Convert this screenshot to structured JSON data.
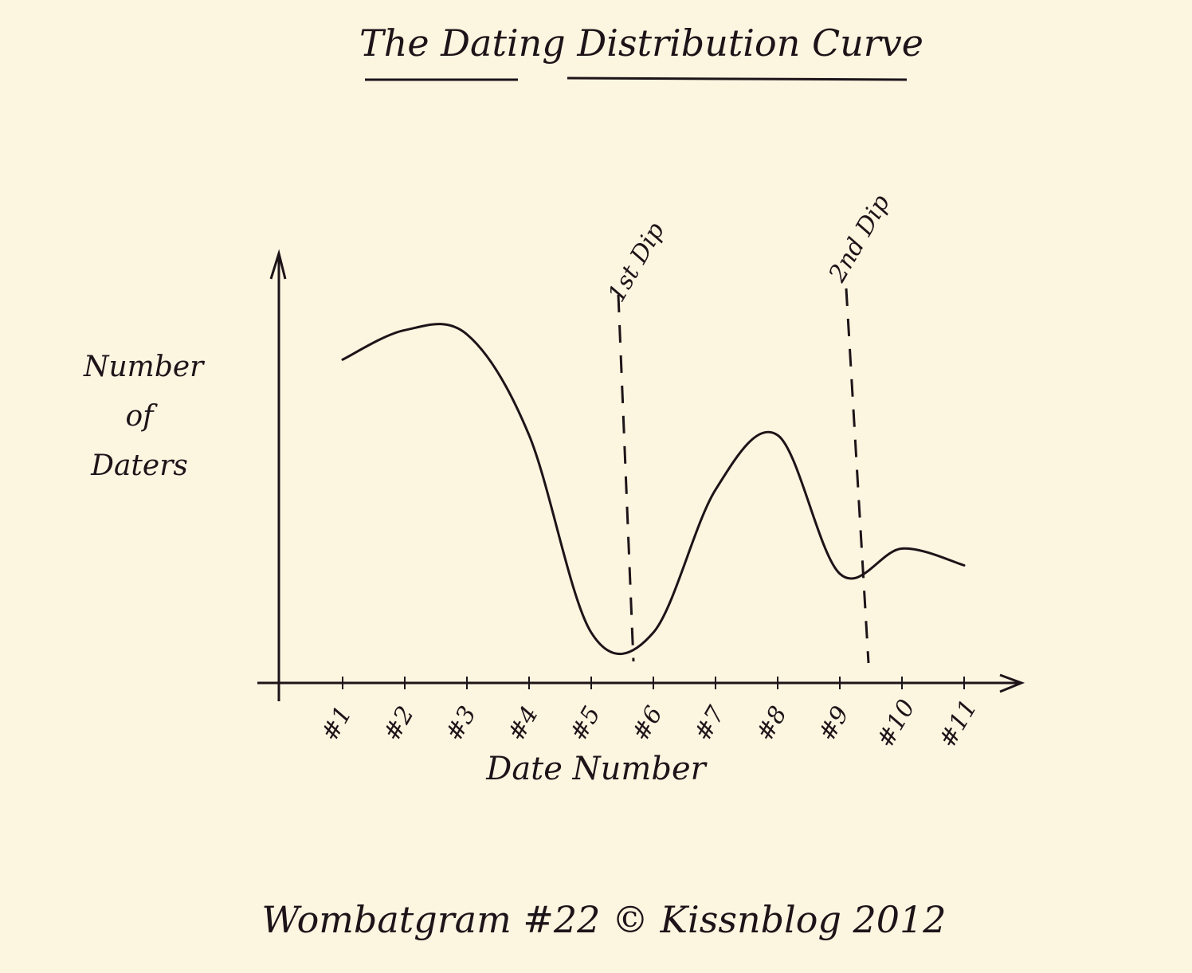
{
  "chart_data": {
    "type": "line",
    "title": "The Dating Distribution Curve",
    "x_label": "Date Number",
    "y_label": "Number of Daters",
    "categories": [
      "#1",
      "#2",
      "#3",
      "#4",
      "#5",
      "#6",
      "#7",
      "#8",
      "#9",
      "#10",
      "#11"
    ],
    "values": [
      77,
      84,
      83,
      59,
      12,
      12,
      46,
      59,
      26,
      32,
      28
    ],
    "color": "#1c1418",
    "ylim": [
      0,
      100
    ],
    "annotations": [
      "1st Dip",
      "2nd Dip"
    ],
    "footer": "Wombatgram #22 © Kissnblog 2012"
  }
}
